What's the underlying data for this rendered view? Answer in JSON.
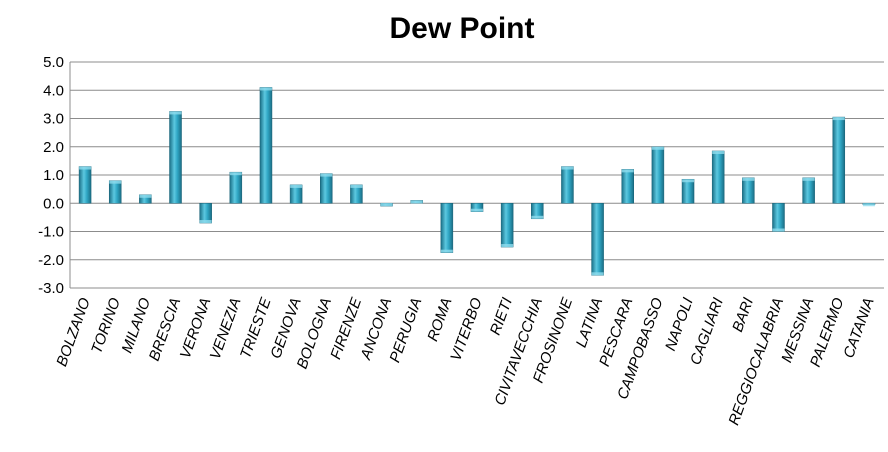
{
  "chart_data": {
    "type": "bar",
    "title": "Dew Point",
    "xlabel": "",
    "ylabel": "",
    "ylim": [
      -3.0,
      5.0
    ],
    "yticks": [
      "5.0",
      "4.0",
      "3.0",
      "2.0",
      "1.0",
      "0.0",
      "-1.0",
      "-2.0",
      "-3.0"
    ],
    "grid": true,
    "legend": "none",
    "bar_color": "#2f9fbf",
    "categories": [
      "BOLZANO",
      "TORINO",
      "MILANO",
      "BRESCIA",
      "VERONA",
      "VENEZIA",
      "TRIESTE",
      "GENOVA",
      "BOLOGNA",
      "FIRENZE",
      "ANCONA",
      "PERUGIA",
      "ROMA",
      "VITERBO",
      "RIETI",
      "CIVITAVECCHIA",
      "FROSINONE",
      "LATINA",
      "PESCARA",
      "CAMPOBASSO",
      "NAPOLI",
      "CAGLIARI",
      "BARI",
      "REGGIOCALABRIA",
      "MESSINA",
      "PALERMO",
      "CATANIA"
    ],
    "values": [
      1.3,
      0.8,
      0.3,
      3.25,
      -0.7,
      1.1,
      4.1,
      0.65,
      1.05,
      0.65,
      -0.1,
      0.1,
      -1.75,
      -0.3,
      -1.55,
      -0.55,
      1.3,
      -2.55,
      1.2,
      2.0,
      0.85,
      1.85,
      0.9,
      -1.0,
      0.9,
      3.05,
      0.0
    ]
  }
}
